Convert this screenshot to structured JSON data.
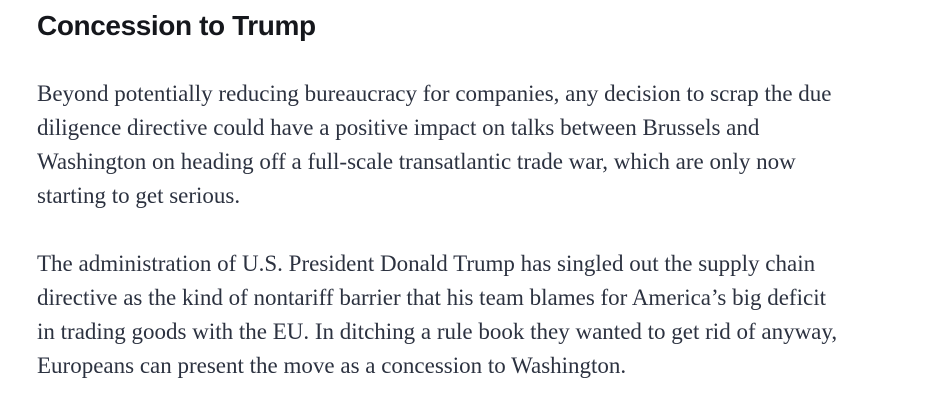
{
  "colors": {
    "background": "#ffffff",
    "heading_text": "#15171c",
    "body_text": "#2c3240"
  },
  "article": {
    "heading": "Concession to Trump",
    "paragraphs": [
      {
        "lines": [
          "Beyond potentially reducing bureaucracy for companies, any decision to scrap the due",
          "diligence directive could have a positive impact on talks between Brussels and",
          "Washington on heading off a full-scale transatlantic trade war, which are only now",
          "starting to get serious."
        ]
      },
      {
        "lines": [
          "The administration of U.S. President Donald Trump has singled out the supply chain",
          "directive as the kind of nontariff barrier that his team blames for America’s big deficit",
          "in trading goods with the EU. In ditching a rule book they wanted to get rid of anyway,",
          "Europeans can present the move as a concession to Washington."
        ]
      }
    ]
  }
}
